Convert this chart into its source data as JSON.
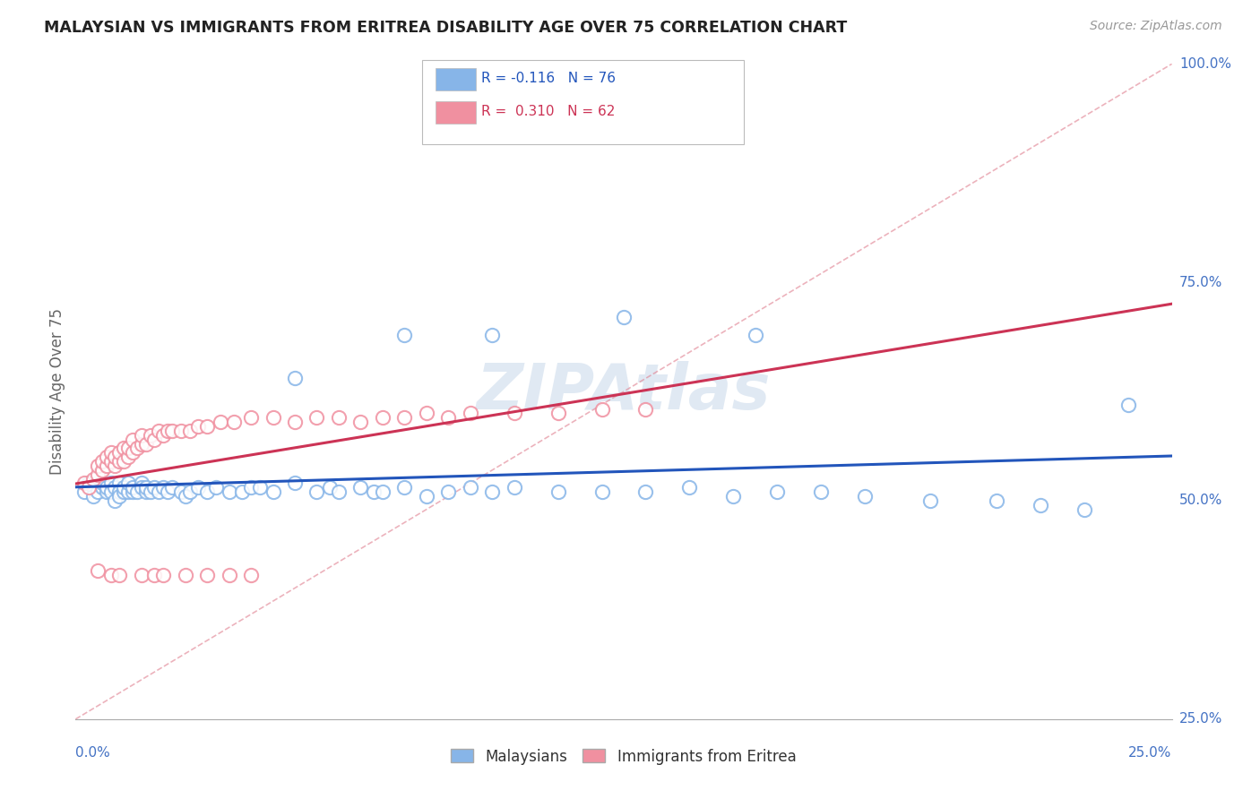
{
  "title": "MALAYSIAN VS IMMIGRANTS FROM ERITREA DISABILITY AGE OVER 75 CORRELATION CHART",
  "source": "Source: ZipAtlas.com",
  "ylabel_label": "Disability Age Over 75",
  "legend_bottom": [
    "Malaysians",
    "Immigrants from Eritrea"
  ],
  "malaysian_color": "#87b5e8",
  "eritrea_color": "#f090a0",
  "trend_malaysian_color": "#2255bb",
  "trend_eritrea_color": "#cc3355",
  "diag_color": "#e08090",
  "watermark_color": "#c8d8ea",
  "malaysian_x": [
    0.002,
    0.003,
    0.004,
    0.004,
    0.005,
    0.005,
    0.006,
    0.006,
    0.007,
    0.007,
    0.008,
    0.008,
    0.009,
    0.009,
    0.01,
    0.01,
    0.01,
    0.011,
    0.011,
    0.012,
    0.012,
    0.013,
    0.013,
    0.014,
    0.015,
    0.015,
    0.016,
    0.016,
    0.017,
    0.018,
    0.019,
    0.02,
    0.021,
    0.022,
    0.024,
    0.025,
    0.026,
    0.028,
    0.03,
    0.032,
    0.035,
    0.038,
    0.04,
    0.042,
    0.045,
    0.05,
    0.055,
    0.058,
    0.06,
    0.065,
    0.068,
    0.07,
    0.075,
    0.08,
    0.085,
    0.09,
    0.095,
    0.1,
    0.11,
    0.12,
    0.13,
    0.14,
    0.15,
    0.16,
    0.17,
    0.18,
    0.195,
    0.21,
    0.22,
    0.23,
    0.05,
    0.075,
    0.095,
    0.125,
    0.155,
    0.24
  ],
  "malaysian_y": [
    0.51,
    0.52,
    0.515,
    0.505,
    0.52,
    0.51,
    0.515,
    0.52,
    0.51,
    0.515,
    0.52,
    0.51,
    0.515,
    0.5,
    0.52,
    0.51,
    0.505,
    0.51,
    0.515,
    0.51,
    0.52,
    0.51,
    0.515,
    0.51,
    0.52,
    0.515,
    0.51,
    0.515,
    0.51,
    0.515,
    0.51,
    0.515,
    0.51,
    0.515,
    0.51,
    0.505,
    0.51,
    0.515,
    0.51,
    0.515,
    0.51,
    0.51,
    0.515,
    0.515,
    0.51,
    0.52,
    0.51,
    0.515,
    0.51,
    0.515,
    0.51,
    0.51,
    0.515,
    0.505,
    0.51,
    0.515,
    0.51,
    0.515,
    0.51,
    0.51,
    0.51,
    0.515,
    0.505,
    0.51,
    0.51,
    0.505,
    0.5,
    0.5,
    0.495,
    0.49,
    0.64,
    0.69,
    0.69,
    0.71,
    0.69,
    0.61
  ],
  "eritrea_x": [
    0.002,
    0.003,
    0.004,
    0.005,
    0.005,
    0.006,
    0.006,
    0.007,
    0.007,
    0.008,
    0.008,
    0.009,
    0.009,
    0.01,
    0.01,
    0.011,
    0.011,
    0.012,
    0.012,
    0.013,
    0.013,
    0.014,
    0.015,
    0.015,
    0.016,
    0.017,
    0.018,
    0.019,
    0.02,
    0.021,
    0.022,
    0.024,
    0.026,
    0.028,
    0.03,
    0.033,
    0.036,
    0.04,
    0.045,
    0.05,
    0.055,
    0.06,
    0.065,
    0.07,
    0.075,
    0.08,
    0.085,
    0.09,
    0.1,
    0.11,
    0.12,
    0.13,
    0.005,
    0.008,
    0.01,
    0.015,
    0.018,
    0.02,
    0.025,
    0.03,
    0.035,
    0.04
  ],
  "eritrea_y": [
    0.52,
    0.515,
    0.525,
    0.53,
    0.54,
    0.535,
    0.545,
    0.54,
    0.55,
    0.545,
    0.555,
    0.54,
    0.55,
    0.545,
    0.555,
    0.545,
    0.56,
    0.55,
    0.56,
    0.555,
    0.57,
    0.56,
    0.565,
    0.575,
    0.565,
    0.575,
    0.57,
    0.58,
    0.575,
    0.58,
    0.58,
    0.58,
    0.58,
    0.585,
    0.585,
    0.59,
    0.59,
    0.595,
    0.595,
    0.59,
    0.595,
    0.595,
    0.59,
    0.595,
    0.595,
    0.6,
    0.595,
    0.6,
    0.6,
    0.6,
    0.605,
    0.605,
    0.42,
    0.415,
    0.415,
    0.415,
    0.415,
    0.415,
    0.415,
    0.415,
    0.415,
    0.415
  ],
  "xmin": 0.0,
  "xmax": 0.25,
  "ymin": 0.25,
  "ymax": 1.0,
  "ytick_vals": [
    0.25,
    0.5,
    0.75,
    1.0
  ],
  "ytick_labels": [
    "25.0%",
    "50.0%",
    "75.0%",
    "100.0%"
  ],
  "background_color": "#ffffff",
  "grid_color": "#d0d0d0",
  "title_color": "#222222",
  "axis_color": "#4472c4"
}
